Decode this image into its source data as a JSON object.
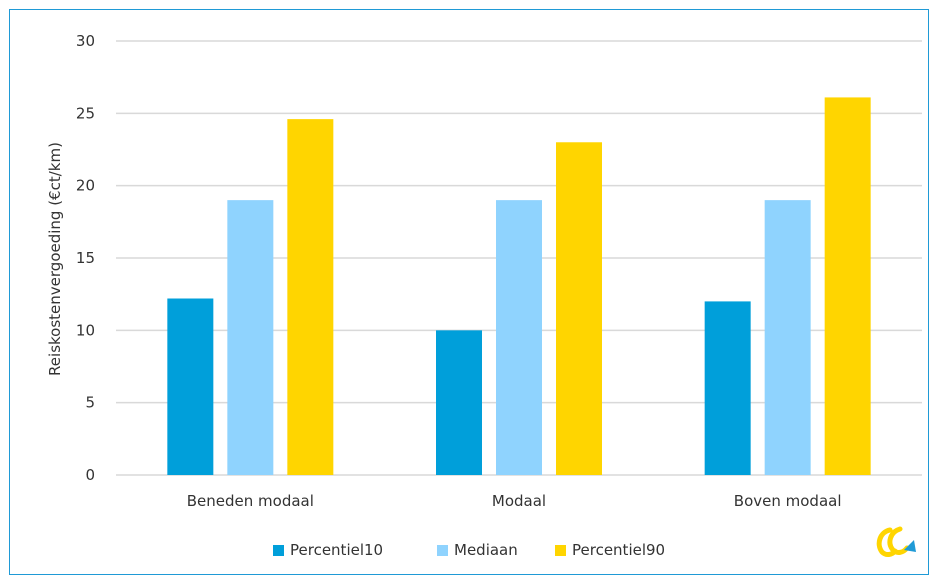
{
  "chart_data": {
    "type": "bar",
    "title": "",
    "xlabel": "",
    "ylabel": "Reiskostenvergoeding (€ct/km)",
    "categories": [
      "Beneden modaal",
      "Modaal",
      "Boven modaal"
    ],
    "series": [
      {
        "name": "Percentiel10",
        "color": "#009fda",
        "values": [
          12.2,
          10,
          12
        ]
      },
      {
        "name": "Mediaan",
        "color": "#8fd3fe",
        "values": [
          19,
          19,
          19
        ]
      },
      {
        "name": "Percentiel90",
        "color": "#ffd500",
        "values": [
          24.6,
          23,
          26.1
        ]
      }
    ],
    "ylim": [
      0,
      30
    ],
    "yticks": [
      0,
      5,
      10,
      15,
      20,
      25,
      30
    ],
    "grid": true,
    "legend_position": "bottom"
  },
  "logo": {
    "icon": "company-logo-icon",
    "colors": [
      "#ffd500",
      "#1f9ad6"
    ]
  },
  "colors": {
    "gridline": "#d9d9d9",
    "frame_border": "#1f9ad6"
  }
}
